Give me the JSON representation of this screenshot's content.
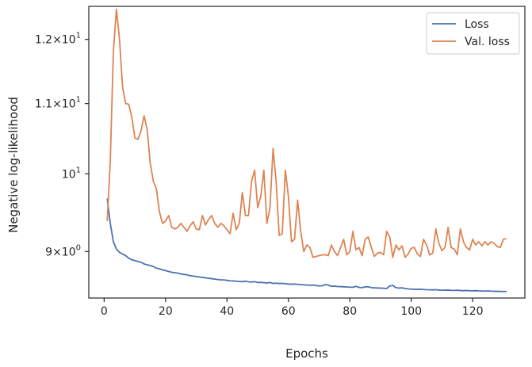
{
  "chart_data": {
    "type": "line",
    "xlabel": "Epochs",
    "ylabel": "Negative log-likelihood",
    "xlim": [
      -5,
      137
    ],
    "ylim": [
      8.45,
      12.55
    ],
    "yscale": "log",
    "grid": false,
    "legend_position": "top-right",
    "x_ticks": [
      0,
      20,
      40,
      60,
      80,
      100,
      120
    ],
    "x_tick_labels": [
      "0",
      "20",
      "40",
      "60",
      "80",
      "100",
      "120"
    ],
    "y_ticks": [
      {
        "value": 9.0,
        "base": "9",
        "exp": "0"
      },
      {
        "value": 10.0,
        "base": "10",
        "exp": "1"
      },
      {
        "value": 11.0,
        "base": "1.1",
        "exp": "1"
      },
      {
        "value": 12.0,
        "base": "1.2",
        "exp": "1"
      }
    ],
    "tick_label_mult": "×",
    "series": [
      {
        "name": "Loss",
        "color": "#4c72b0",
        "x": [
          1,
          2,
          3,
          4,
          5,
          6,
          7,
          8,
          9,
          10,
          11,
          12,
          13,
          14,
          15,
          16,
          17,
          18,
          19,
          20,
          21,
          22,
          23,
          24,
          25,
          26,
          27,
          28,
          29,
          30,
          31,
          32,
          33,
          34,
          35,
          36,
          37,
          38,
          39,
          40,
          41,
          42,
          43,
          44,
          45,
          46,
          47,
          48,
          49,
          50,
          51,
          52,
          53,
          54,
          55,
          56,
          57,
          58,
          59,
          60,
          61,
          62,
          63,
          64,
          65,
          66,
          67,
          68,
          69,
          70,
          71,
          72,
          73,
          74,
          75,
          76,
          77,
          78,
          79,
          80,
          81,
          82,
          83,
          84,
          85,
          86,
          87,
          88,
          89,
          90,
          91,
          92,
          93,
          94,
          95,
          96,
          97,
          98,
          99,
          100,
          101,
          102,
          103,
          104,
          105,
          106,
          107,
          108,
          109,
          110,
          111,
          112,
          113,
          114,
          115,
          116,
          117,
          118,
          119,
          120,
          121,
          122,
          123,
          124,
          125,
          126,
          127,
          128,
          129,
          130,
          131
        ],
        "values": [
          9.67,
          9.35,
          9.12,
          9.03,
          8.99,
          8.97,
          8.95,
          8.92,
          8.9,
          8.89,
          8.88,
          8.87,
          8.85,
          8.84,
          8.83,
          8.82,
          8.8,
          8.79,
          8.78,
          8.77,
          8.76,
          8.75,
          8.745,
          8.74,
          8.73,
          8.725,
          8.72,
          8.71,
          8.705,
          8.7,
          8.695,
          8.69,
          8.685,
          8.68,
          8.675,
          8.67,
          8.665,
          8.66,
          8.66,
          8.655,
          8.65,
          8.648,
          8.645,
          8.642,
          8.64,
          8.645,
          8.638,
          8.635,
          8.64,
          8.63,
          8.632,
          8.628,
          8.625,
          8.63,
          8.62,
          8.622,
          8.618,
          8.62,
          8.615,
          8.612,
          8.61,
          8.612,
          8.608,
          8.605,
          8.602,
          8.6,
          8.598,
          8.6,
          8.595,
          8.59,
          8.592,
          8.605,
          8.6,
          8.585,
          8.588,
          8.583,
          8.582,
          8.58,
          8.578,
          8.576,
          8.575,
          8.585,
          8.572,
          8.57,
          8.58,
          8.58,
          8.57,
          8.568,
          8.566,
          8.565,
          8.563,
          8.56,
          8.59,
          8.595,
          8.57,
          8.565,
          8.568,
          8.56,
          8.555,
          8.553,
          8.551,
          8.55,
          8.552,
          8.548,
          8.546,
          8.545,
          8.544,
          8.546,
          8.542,
          8.541,
          8.54,
          8.542,
          8.539,
          8.538,
          8.54,
          8.536,
          8.535,
          8.537,
          8.534,
          8.533,
          8.535,
          8.532,
          8.531,
          8.53,
          8.532,
          8.529,
          8.528,
          8.527,
          8.526,
          8.525,
          8.526
        ]
      },
      {
        "name": "Val. loss",
        "color": "#dd8452",
        "x": [
          1,
          2,
          3,
          4,
          5,
          6,
          7,
          8,
          9,
          10,
          11,
          12,
          13,
          14,
          15,
          16,
          17,
          18,
          19,
          20,
          21,
          22,
          23,
          24,
          25,
          26,
          27,
          28,
          29,
          30,
          31,
          32,
          33,
          34,
          35,
          36,
          37,
          38,
          39,
          40,
          41,
          42,
          43,
          44,
          45,
          46,
          47,
          48,
          49,
          50,
          51,
          52,
          53,
          54,
          55,
          56,
          57,
          58,
          59,
          60,
          61,
          62,
          63,
          64,
          65,
          66,
          67,
          68,
          69,
          70,
          71,
          72,
          73,
          74,
          75,
          76,
          77,
          78,
          79,
          80,
          81,
          82,
          83,
          84,
          85,
          86,
          87,
          88,
          89,
          90,
          91,
          92,
          93,
          94,
          95,
          96,
          97,
          98,
          99,
          100,
          101,
          102,
          103,
          104,
          105,
          106,
          107,
          108,
          109,
          110,
          111,
          112,
          113,
          114,
          115,
          116,
          117,
          118,
          119,
          120,
          121,
          122,
          123,
          124,
          125,
          126,
          127,
          128,
          129,
          130,
          131
        ],
        "values": [
          9.38,
          10.18,
          11.8,
          12.5,
          12.0,
          11.25,
          11.0,
          10.99,
          10.8,
          10.5,
          10.48,
          10.6,
          10.82,
          10.62,
          10.15,
          9.9,
          9.8,
          9.5,
          9.35,
          9.38,
          9.45,
          9.3,
          9.28,
          9.3,
          9.35,
          9.3,
          9.25,
          9.32,
          9.37,
          9.28,
          9.27,
          9.45,
          9.33,
          9.4,
          9.45,
          9.35,
          9.3,
          9.35,
          9.32,
          9.27,
          9.22,
          9.48,
          9.27,
          9.35,
          9.75,
          9.45,
          9.45,
          9.9,
          10.05,
          9.55,
          9.7,
          10.05,
          9.35,
          9.55,
          10.35,
          9.9,
          9.2,
          9.22,
          10.05,
          9.7,
          9.12,
          9.15,
          9.65,
          9.25,
          9.0,
          9.08,
          9.05,
          8.93,
          8.94,
          8.95,
          8.96,
          8.96,
          8.95,
          9.08,
          9.0,
          8.95,
          9.05,
          9.15,
          8.96,
          9.0,
          9.25,
          9.02,
          9.05,
          8.95,
          9.15,
          9.18,
          9.05,
          8.94,
          8.98,
          8.99,
          8.96,
          9.25,
          9.18,
          8.93,
          9.08,
          9.02,
          9.07,
          8.93,
          8.97,
          9.04,
          9.05,
          8.97,
          8.94,
          9.15,
          9.08,
          8.96,
          8.98,
          9.28,
          9.1,
          9.01,
          9.05,
          9.3,
          9.05,
          9.03,
          8.96,
          9.28,
          9.12,
          9.05,
          9.02,
          9.15,
          9.08,
          9.12,
          9.07,
          9.12,
          9.08,
          9.12,
          9.1,
          9.06,
          9.05,
          9.15,
          9.16
        ]
      }
    ]
  }
}
